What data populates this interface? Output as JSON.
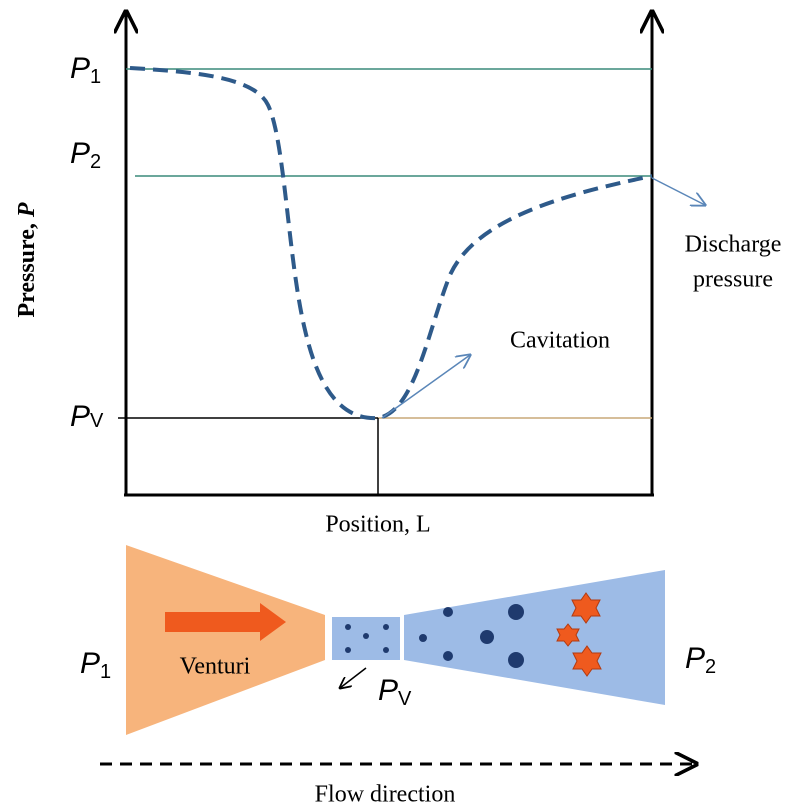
{
  "graph": {
    "p1_label": {
      "symbol": "P",
      "subscript": "1"
    },
    "p2_label": {
      "symbol": "P",
      "subscript": "2"
    },
    "pv_label": {
      "symbol": "P",
      "subscript": "V"
    },
    "y_axis_label": {
      "text": "Pressure, ",
      "symbol": "P"
    },
    "x_axis_label": "Position, L",
    "discharge_label": [
      "Discharge",
      "pressure"
    ],
    "cavitation_label": "Cavitation"
  },
  "venturi": {
    "inlet_label": {
      "symbol": "P",
      "subscript": "1"
    },
    "outlet_label": {
      "symbol": "P",
      "subscript": "2"
    },
    "throat_label": {
      "symbol": "P",
      "subscript": "V"
    },
    "name": "Venturi",
    "flow_label": "Flow direction"
  }
}
